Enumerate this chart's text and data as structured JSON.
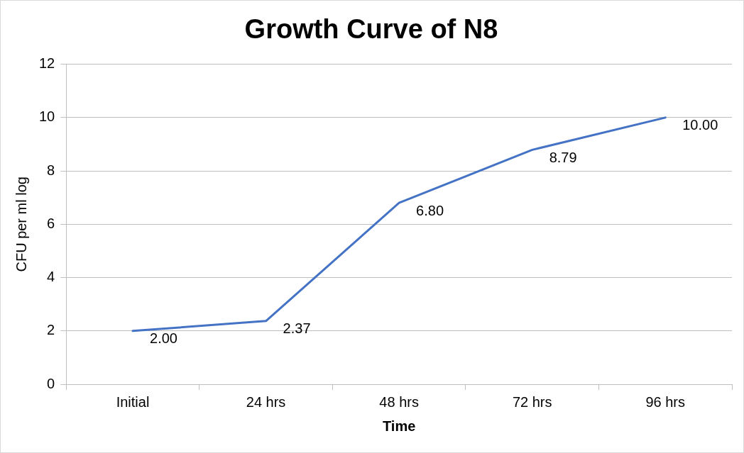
{
  "chart_data": {
    "type": "line",
    "title": "Growth Curve of N8",
    "xlabel": "Time",
    "ylabel": "CFU per ml log",
    "categories": [
      "Initial",
      "24 hrs",
      "48 hrs",
      "72 hrs",
      "96 hrs"
    ],
    "values": [
      2.0,
      2.37,
      6.8,
      8.79,
      10.0
    ],
    "value_labels": [
      "2.00",
      "2.37",
      "6.80",
      "8.79",
      "10.00"
    ],
    "color": "#4472c4",
    "ylim": [
      0,
      12
    ],
    "yticks": [
      0,
      2,
      4,
      6,
      8,
      10,
      12
    ],
    "grid": "y",
    "legend": false,
    "marker": "none",
    "line_style": "solid"
  }
}
